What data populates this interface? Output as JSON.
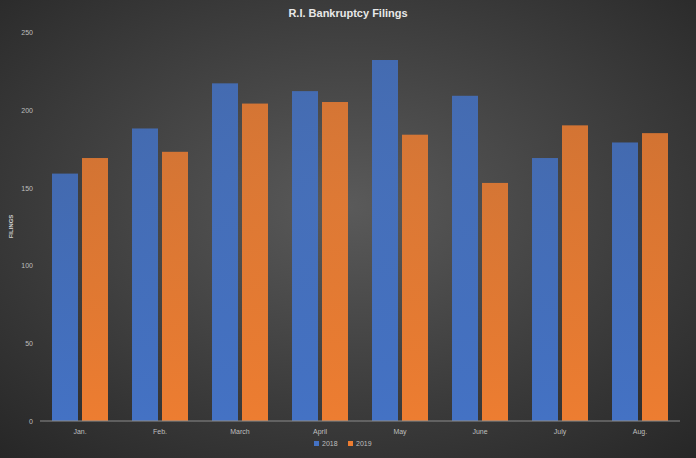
{
  "chart_data": {
    "type": "bar",
    "title": "R.I. Bankruptcy  Filings",
    "y_label": "FILINGS",
    "categories": [
      "Jan.",
      "Feb.",
      "March",
      "April",
      "May",
      "June",
      "July",
      "Aug."
    ],
    "series": [
      {
        "name": "2018",
        "color": "#4472c4",
        "values": [
          159,
          188,
          217,
          212,
          232,
          209,
          169,
          179
        ]
      },
      {
        "name": "2019",
        "color": "#ed7d31",
        "values": [
          169,
          173,
          204,
          205,
          184,
          153,
          190,
          185
        ]
      }
    ],
    "ylim": [
      0,
      250
    ],
    "yticks": [
      0,
      50,
      100,
      150,
      200,
      250
    ],
    "grid": false,
    "legend": "bottom"
  }
}
